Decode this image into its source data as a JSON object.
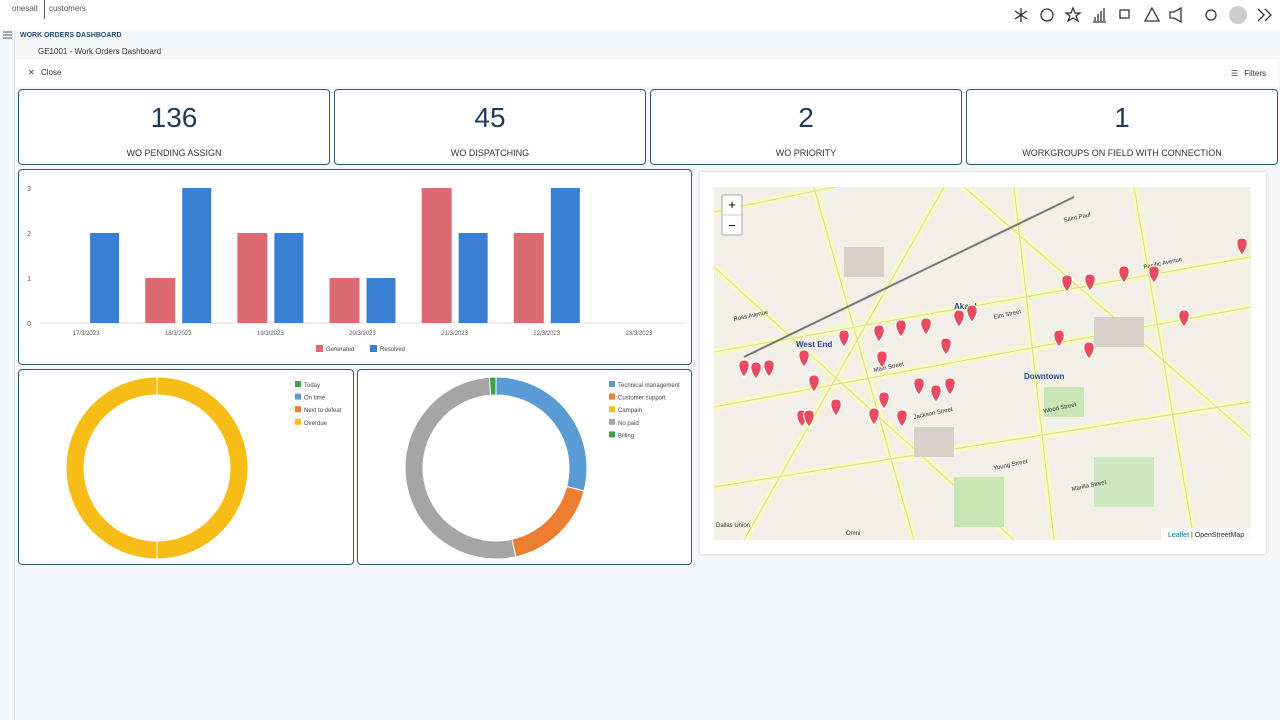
{
  "header": {
    "logo_brand": "onesait",
    "logo_product": "customers",
    "nav_title": "WORK ORDERS DASHBOARD",
    "breadcrumb": "GE1001 - Work Orders Dashboard",
    "close": "Close",
    "filters": "Filters"
  },
  "kpis": [
    {
      "value": 136,
      "label": "WO PENDING ASSIGN"
    },
    {
      "value": 45,
      "label": "WO DISPATCHING"
    },
    {
      "value": 2,
      "label": "WO PRIORITY"
    },
    {
      "value": 1,
      "label": "WORKGROUPS ON FIELD WITH CONNECTION"
    }
  ],
  "chart_data": [
    {
      "type": "bar",
      "categories": [
        "17/3/2023",
        "18/3/2023",
        "19/3/2023",
        "20/3/2023",
        "21/3/2023",
        "22/3/2023",
        "23/3/2023"
      ],
      "series": [
        {
          "name": "Generated",
          "color": "#dc6a72",
          "values": [
            0,
            1,
            2,
            1,
            3,
            2,
            0
          ]
        },
        {
          "name": "Resolved",
          "color": "#3a80d2",
          "values": [
            2,
            3,
            2,
            1,
            2,
            3,
            0
          ]
        }
      ],
      "ylim": [
        0,
        3
      ],
      "yticks": [
        0,
        1,
        2,
        3
      ]
    },
    {
      "type": "donut",
      "categories": [
        "Today",
        "On time",
        "Next to defeat",
        "Overdue"
      ],
      "colors": [
        "#43a047",
        "#5b9bd5",
        "#ed7d31",
        "#f7bd16"
      ],
      "values": [
        0,
        0,
        0,
        80
      ]
    },
    {
      "type": "donut",
      "categories": [
        "Technical management",
        "Customer support",
        "Campain",
        "No paid",
        "Billing"
      ],
      "colors": [
        "#5b9bd5",
        "#ed7d31",
        "#f7bd16",
        "#a5a5a5",
        "#43a047"
      ],
      "values": [
        50,
        30,
        0,
        90,
        2
      ]
    }
  ],
  "map": {
    "zoom_in": "+",
    "zoom_out": "−",
    "attribution_link": "Leaflet",
    "attribution": "| OpenStreetMap",
    "labels": [
      "West End",
      "Akard",
      "Downtown",
      "Main Street",
      "Elm Street",
      "Pacific Avenue",
      "Wood Street",
      "Young Street",
      "Saint Paul",
      "Ross Avenue",
      "Jackson Street",
      "Marilla Street",
      "Omni",
      "Dallas Union"
    ]
  }
}
